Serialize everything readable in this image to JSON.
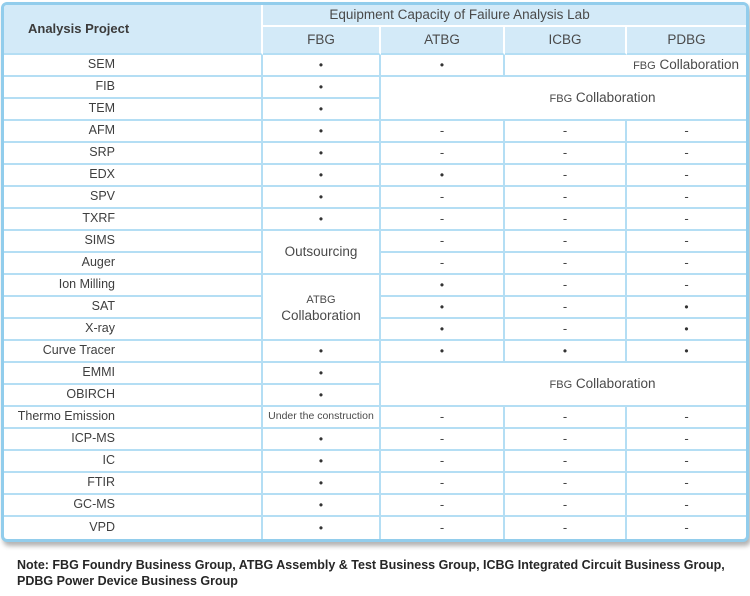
{
  "chart_data": {
    "type": "table",
    "title": "Equipment Capacity of Failure Analysis Lab",
    "corner_header": "Analysis Project",
    "columns": [
      "FBG",
      "ATBG",
      "ICBG",
      "PDBG"
    ],
    "symbols": {
      "available": "•",
      "not_available": "-"
    },
    "rows": [
      {
        "label": "SEM",
        "cells": [
          {
            "type": "dot"
          },
          {
            "type": "dot"
          },
          {
            "type": "collab",
            "prefix": "FBG",
            "text": "Collaboration",
            "colspan": 2,
            "variant": "right"
          }
        ]
      },
      {
        "label": "FIB",
        "cells": [
          {
            "type": "dot"
          },
          {
            "type": "collab",
            "prefix": "FBG",
            "text": "Collaboration",
            "colspan": 3,
            "rowspan": 2,
            "variant": "wide"
          }
        ]
      },
      {
        "label": "TEM",
        "cells": [
          {
            "type": "dot"
          }
        ]
      },
      {
        "label": "AFM",
        "cells": [
          {
            "type": "dot"
          },
          {
            "type": "dash"
          },
          {
            "type": "dash"
          },
          {
            "type": "dash"
          }
        ]
      },
      {
        "label": "SRP",
        "cells": [
          {
            "type": "dot"
          },
          {
            "type": "dash"
          },
          {
            "type": "dash"
          },
          {
            "type": "dash"
          }
        ]
      },
      {
        "label": "EDX",
        "cells": [
          {
            "type": "dot"
          },
          {
            "type": "dot"
          },
          {
            "type": "dash"
          },
          {
            "type": "dash"
          }
        ]
      },
      {
        "label": "SPV",
        "cells": [
          {
            "type": "dot"
          },
          {
            "type": "dash"
          },
          {
            "type": "dash"
          },
          {
            "type": "dash"
          }
        ]
      },
      {
        "label": "TXRF",
        "cells": [
          {
            "type": "dot"
          },
          {
            "type": "dash"
          },
          {
            "type": "dash"
          },
          {
            "type": "dash"
          }
        ]
      },
      {
        "label": "SIMS",
        "cells": [
          {
            "type": "text",
            "text": "Outsourcing",
            "rowspan": 2
          },
          {
            "type": "dash"
          },
          {
            "type": "dash"
          },
          {
            "type": "dash"
          }
        ]
      },
      {
        "label": "Auger",
        "cells": [
          {
            "type": "dash"
          },
          {
            "type": "dash"
          },
          {
            "type": "dash"
          }
        ]
      },
      {
        "label": "Ion Milling",
        "cells": [
          {
            "type": "collab",
            "prefix": "ATBG",
            "text": "Collaboration",
            "rowspan": 3,
            "variant": "stack"
          },
          {
            "type": "dot"
          },
          {
            "type": "dash"
          },
          {
            "type": "dash"
          }
        ]
      },
      {
        "label": "SAT",
        "cells": [
          {
            "type": "dot"
          },
          {
            "type": "dash"
          },
          {
            "type": "dot"
          }
        ]
      },
      {
        "label": "X-ray",
        "cells": [
          {
            "type": "dot"
          },
          {
            "type": "dash"
          },
          {
            "type": "dot"
          }
        ]
      },
      {
        "label": "Curve Tracer",
        "cells": [
          {
            "type": "dot"
          },
          {
            "type": "dot"
          },
          {
            "type": "dot"
          },
          {
            "type": "dot"
          }
        ]
      },
      {
        "label": "EMMI",
        "cells": [
          {
            "type": "dot"
          },
          {
            "type": "collab",
            "prefix": "FBG",
            "text": "Collaboration",
            "colspan": 3,
            "rowspan": 2,
            "variant": "wide"
          }
        ]
      },
      {
        "label": "OBIRCH",
        "cells": [
          {
            "type": "dot"
          }
        ]
      },
      {
        "label": "Thermo Emission",
        "cells": [
          {
            "type": "text",
            "text": "Under the construction",
            "variant": "small"
          },
          {
            "type": "dash"
          },
          {
            "type": "dash"
          },
          {
            "type": "dash"
          }
        ]
      },
      {
        "label": "ICP-MS",
        "cells": [
          {
            "type": "dot"
          },
          {
            "type": "dash"
          },
          {
            "type": "dash"
          },
          {
            "type": "dash"
          }
        ]
      },
      {
        "label": "IC",
        "cells": [
          {
            "type": "dot"
          },
          {
            "type": "dash"
          },
          {
            "type": "dash"
          },
          {
            "type": "dash"
          }
        ]
      },
      {
        "label": "FTIR",
        "cells": [
          {
            "type": "dot"
          },
          {
            "type": "dash"
          },
          {
            "type": "dash"
          },
          {
            "type": "dash"
          }
        ]
      },
      {
        "label": "GC-MS",
        "cells": [
          {
            "type": "dot"
          },
          {
            "type": "dash"
          },
          {
            "type": "dash"
          },
          {
            "type": "dash"
          }
        ]
      },
      {
        "label": "VPD",
        "cells": [
          {
            "type": "dot"
          },
          {
            "type": "dash"
          },
          {
            "type": "dash"
          },
          {
            "type": "dash"
          }
        ]
      }
    ]
  },
  "note": {
    "line1": "Note: FBG Foundry Business Group, ATBG Assembly & Test Business Group, ICBG Integrated Circuit Business Group,",
    "line2": "PDBG Power Device Business Group"
  },
  "colors": {
    "header_bg": "#d3eaf8",
    "outer_border": "#92cdec",
    "inner_border": "#b4def4",
    "text": "#3e3e3e"
  }
}
